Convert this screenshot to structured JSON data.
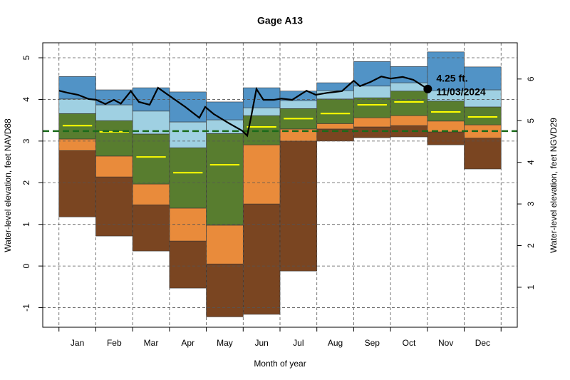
{
  "chart_data": {
    "type": "percentile-bands",
    "title": "Gage A13",
    "x_label": "Month of year",
    "y_label": "Water-level elevation, feet NAVD88",
    "y2_label": "Water-level elevation, feet NGVD29",
    "categories": [
      "Jan",
      "Feb",
      "Mar",
      "Apr",
      "May",
      "Jun",
      "Jul",
      "Aug",
      "Sep",
      "Oct",
      "Nov",
      "Dec"
    ],
    "xlim": [
      -0.44,
      12.44
    ],
    "xticks": [
      0,
      1,
      2,
      3,
      4,
      5,
      6,
      7,
      8,
      9,
      10,
      11,
      12
    ],
    "ylim": [
      -1.47,
      5.36
    ],
    "yticks": [
      -1,
      0,
      1,
      2,
      3,
      4,
      5
    ],
    "y2lim": [
      0.04,
      6.87
    ],
    "y2ticks": [
      1,
      2,
      3,
      4,
      5,
      6
    ],
    "grid": true,
    "levels": [
      {
        "values": [
          1.18,
          0.72,
          0.36,
          -0.53,
          -1.22,
          -1.16,
          -0.12,
          3.0,
          3.08,
          3.1,
          2.91,
          2.33
        ]
      },
      {
        "values": [
          2.77,
          2.14,
          1.47,
          0.6,
          0.05,
          1.49,
          3.0,
          3.29,
          3.34,
          3.37,
          3.22,
          3.07
        ]
      },
      {
        "values": [
          3.05,
          2.64,
          1.97,
          1.39,
          0.98,
          2.91,
          3.29,
          3.42,
          3.56,
          3.61,
          3.48,
          3.39
        ]
      },
      {
        "values": [
          3.66,
          3.49,
          3.17,
          2.84,
          3.18,
          3.61,
          3.78,
          4.01,
          4.04,
          4.2,
          3.96,
          3.82
        ]
      },
      {
        "values": [
          4.01,
          3.87,
          3.72,
          3.46,
          3.51,
          3.8,
          3.97,
          4.21,
          4.32,
          4.4,
          4.21,
          4.23
        ]
      },
      {
        "values": [
          4.55,
          4.23,
          4.28,
          4.18,
          3.94,
          4.28,
          4.2,
          4.4,
          4.91,
          4.79,
          5.14,
          4.78
        ]
      }
    ],
    "band_colors": [
      "#7a4521",
      "#e98b3b",
      "#587d2f",
      "#9fd0e2",
      "#5193c6"
    ],
    "median": {
      "color": "#ffff00",
      "values": [
        3.37,
        3.22,
        2.62,
        2.24,
        2.43,
        3.34,
        3.54,
        3.66,
        3.87,
        3.94,
        3.7,
        3.58
      ]
    },
    "current": {
      "color": "#000000",
      "x": [
        0,
        0.23,
        0.52,
        0.81,
        1.01,
        1.26,
        1.49,
        1.68,
        1.95,
        2.17,
        2.46,
        2.69,
        2.96,
        3.43,
        3.81,
        3.97,
        4.2,
        4.59,
        4.97,
        5.11,
        5.21,
        5.36,
        5.55,
        5.84,
        6.04,
        6.33,
        6.72,
        6.97,
        7.3,
        7.68,
        8.0,
        8.17,
        8.46,
        8.75,
        9.0,
        9.33,
        9.62,
        10.01
      ],
      "values": [
        4.21,
        4.16,
        4.11,
        4.01,
        3.99,
        3.89,
        3.99,
        3.9,
        4.2,
        3.94,
        3.87,
        4.28,
        4.11,
        3.82,
        3.56,
        3.82,
        3.65,
        3.44,
        3.25,
        3.13,
        3.56,
        4.25,
        3.99,
        3.99,
        4.02,
        3.99,
        4.21,
        4.11,
        4.16,
        4.2,
        4.45,
        4.32,
        4.42,
        4.55,
        4.5,
        4.54,
        4.47,
        4.25
      ]
    },
    "point": {
      "x": 10.01,
      "y": 4.25,
      "labels": [
        "4.25 ft.",
        "11/03/2024"
      ]
    },
    "hline": {
      "value": 3.24,
      "color": "#1a6a1a"
    }
  }
}
